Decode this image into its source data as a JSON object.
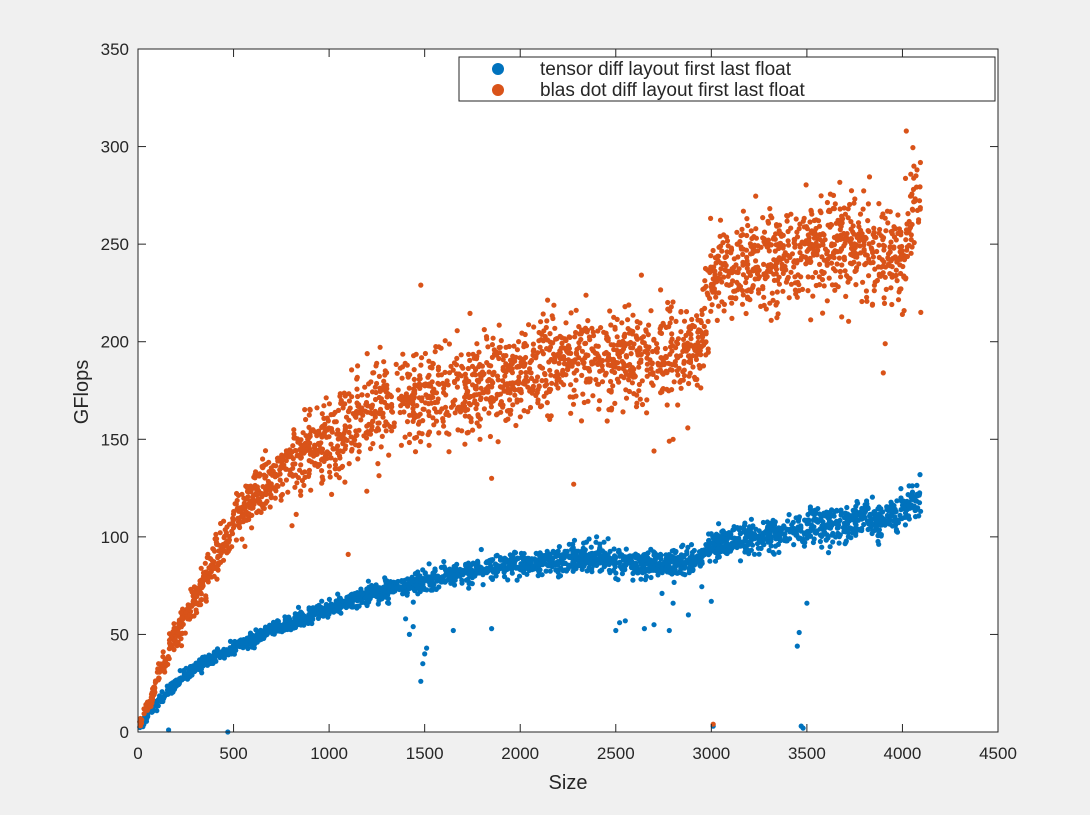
{
  "chart_data": {
    "type": "scatter",
    "title": "",
    "xlabel": "Size",
    "ylabel": "GFlops",
    "xlim": [
      0,
      4500
    ],
    "ylim": [
      0,
      350
    ],
    "xticks": [
      0,
      500,
      1000,
      1500,
      2000,
      2500,
      3000,
      3500,
      4000,
      4500
    ],
    "yticks": [
      0,
      50,
      100,
      150,
      200,
      250,
      300,
      350
    ],
    "grid": false,
    "legend_position": "top-right",
    "series": [
      {
        "name": "tensor diff layout first last float",
        "color": "#0072bd",
        "trend": [
          [
            8,
            2
          ],
          [
            60,
            10
          ],
          [
            120,
            17
          ],
          [
            200,
            25
          ],
          [
            300,
            33
          ],
          [
            400,
            38
          ],
          [
            500,
            43
          ],
          [
            600,
            48
          ],
          [
            700,
            53
          ],
          [
            800,
            56
          ],
          [
            900,
            60
          ],
          [
            1000,
            63
          ],
          [
            1100,
            67
          ],
          [
            1200,
            70
          ],
          [
            1300,
            73
          ],
          [
            1400,
            75
          ],
          [
            1500,
            78
          ],
          [
            1600,
            80
          ],
          [
            1700,
            82
          ],
          [
            1800,
            83
          ],
          [
            1900,
            85
          ],
          [
            2000,
            86
          ],
          [
            2100,
            87
          ],
          [
            2200,
            88
          ],
          [
            2300,
            89
          ],
          [
            2400,
            90
          ],
          [
            2500,
            87
          ],
          [
            2600,
            86
          ],
          [
            2700,
            86
          ],
          [
            2800,
            87
          ],
          [
            2900,
            87
          ],
          [
            2950,
            90
          ],
          [
            3000,
            96
          ],
          [
            3100,
            98
          ],
          [
            3200,
            99
          ],
          [
            3300,
            101
          ],
          [
            3400,
            101
          ],
          [
            3500,
            104
          ],
          [
            3600,
            106
          ],
          [
            3700,
            108
          ],
          [
            3800,
            110
          ],
          [
            3900,
            108
          ],
          [
            4000,
            114
          ],
          [
            4096,
            122
          ]
        ],
        "outliers": [
          [
            160,
            1
          ],
          [
            470,
            0
          ],
          [
            1480,
            26
          ],
          [
            1490,
            35
          ],
          [
            1500,
            40
          ],
          [
            1510,
            43
          ],
          [
            1400,
            58
          ],
          [
            1420,
            50
          ],
          [
            1440,
            54
          ],
          [
            1650,
            52
          ],
          [
            1850,
            53
          ],
          [
            2500,
            52
          ],
          [
            2520,
            56
          ],
          [
            2550,
            57
          ],
          [
            2650,
            53
          ],
          [
            2700,
            55
          ],
          [
            2780,
            52
          ],
          [
            2800,
            66
          ],
          [
            3000,
            67
          ],
          [
            2880,
            60
          ],
          [
            3450,
            44
          ],
          [
            3460,
            51
          ],
          [
            3470,
            3
          ],
          [
            3480,
            2
          ],
          [
            3500,
            66
          ],
          [
            3010,
            3
          ]
        ]
      },
      {
        "name": "blas dot diff layout first last float",
        "color": "#d95319",
        "trend": [
          [
            8,
            4
          ],
          [
            60,
            15
          ],
          [
            120,
            32
          ],
          [
            200,
            50
          ],
          [
            300,
            68
          ],
          [
            400,
            88
          ],
          [
            500,
            105
          ],
          [
            600,
            118
          ],
          [
            700,
            128
          ],
          [
            800,
            137
          ],
          [
            900,
            145
          ],
          [
            1000,
            150
          ],
          [
            1100,
            157
          ],
          [
            1200,
            162
          ],
          [
            1300,
            166
          ],
          [
            1400,
            170
          ],
          [
            1500,
            172
          ],
          [
            1600,
            175
          ],
          [
            1700,
            177
          ],
          [
            1800,
            178
          ],
          [
            1900,
            181
          ],
          [
            2000,
            183
          ],
          [
            2100,
            186
          ],
          [
            2200,
            188
          ],
          [
            2300,
            190
          ],
          [
            2400,
            192
          ],
          [
            2500,
            193
          ],
          [
            2600,
            190
          ],
          [
            2700,
            192
          ],
          [
            2800,
            193
          ],
          [
            2900,
            196
          ],
          [
            2950,
            201
          ],
          [
            3000,
            232
          ],
          [
            3100,
            236
          ],
          [
            3200,
            238
          ],
          [
            3300,
            241
          ],
          [
            3400,
            243
          ],
          [
            3500,
            247
          ],
          [
            3600,
            250
          ],
          [
            3700,
            250
          ],
          [
            3800,
            246
          ],
          [
            3900,
            244
          ],
          [
            4000,
            242
          ],
          [
            4050,
            268
          ],
          [
            4096,
            275
          ]
        ],
        "outliers": [
          [
            1480,
            229
          ],
          [
            1100,
            91
          ],
          [
            2280,
            127
          ],
          [
            2700,
            144
          ],
          [
            2780,
            149
          ],
          [
            2800,
            150
          ],
          [
            3900,
            184
          ],
          [
            3910,
            199
          ],
          [
            4020,
            308
          ],
          [
            4000,
            214
          ],
          [
            4060,
            290
          ],
          [
            4096,
            215
          ],
          [
            3010,
            4
          ],
          [
            1850,
            130
          ]
        ]
      }
    ]
  }
}
